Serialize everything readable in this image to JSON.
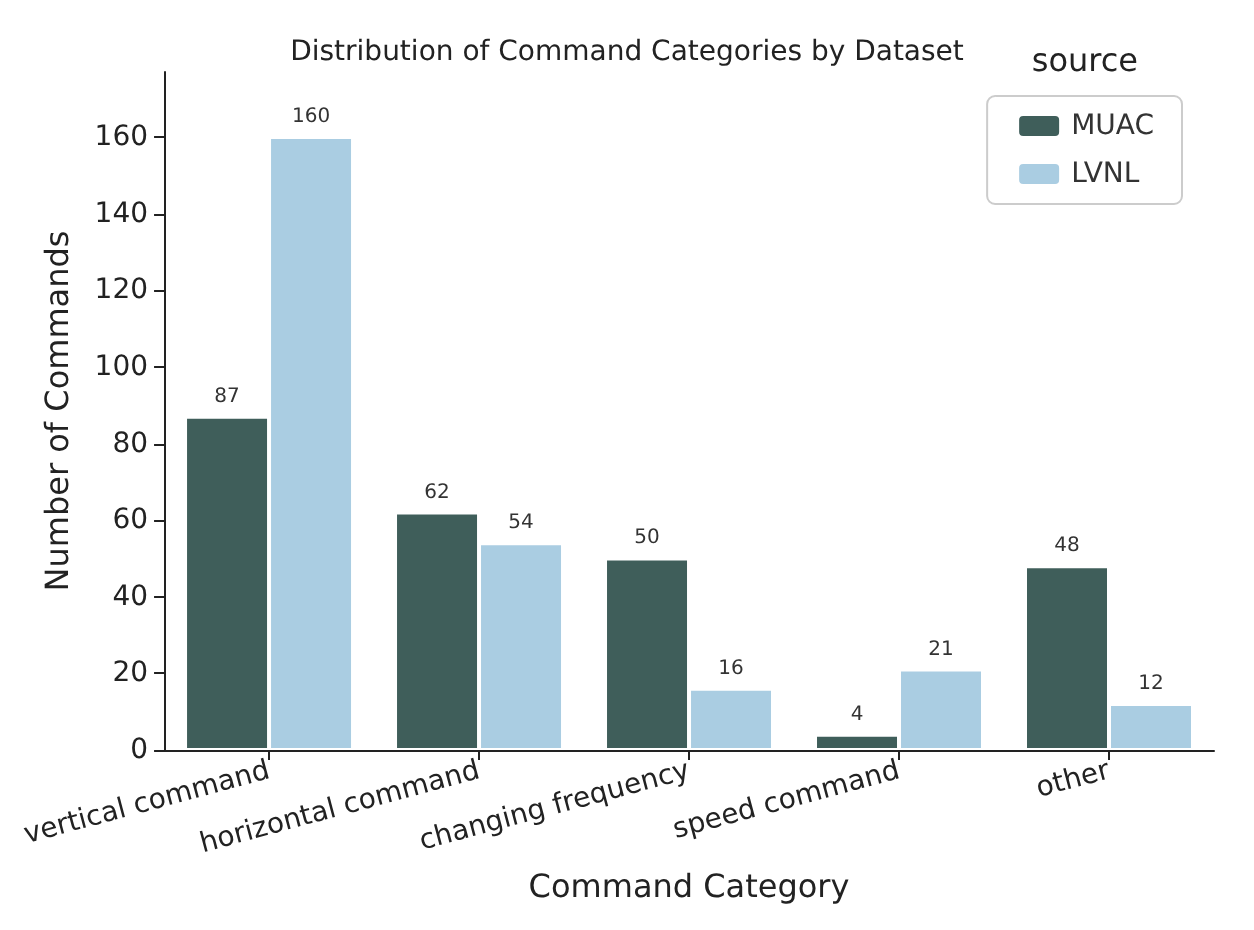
{
  "chart_data": {
    "type": "bar",
    "title": "Distribution of Command Categories by Dataset",
    "xlabel": "Command Category",
    "ylabel": "Number of Commands",
    "legend_title": "source",
    "categories": [
      "vertical command",
      "horizontal command",
      "changing frequency",
      "speed command",
      "other"
    ],
    "series": [
      {
        "name": "MUAC",
        "color": "#3f5e5a",
        "values": [
          87,
          62,
          50,
          4,
          48
        ]
      },
      {
        "name": "LVNL",
        "color": "#aacde2",
        "values": [
          160,
          54,
          16,
          21,
          12
        ]
      }
    ],
    "ylim": [
      0,
      177
    ],
    "yticks": [
      0,
      20,
      40,
      60,
      80,
      100,
      120,
      140,
      160
    ],
    "grid": false,
    "legend": "top right",
    "data_labels": true
  }
}
